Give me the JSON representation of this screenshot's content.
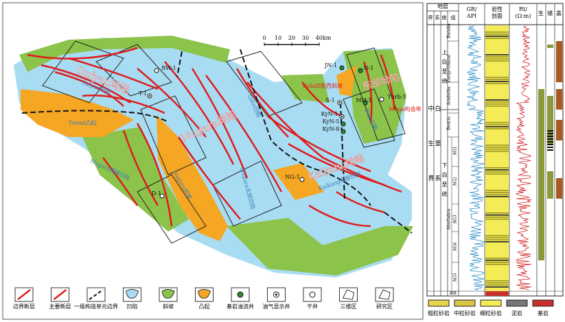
{
  "map": {
    "labels": [
      "Sufyan坳陷",
      "Sufyan凹陷",
      "Tomat凸起",
      "Nugara坳陷",
      "Gato凹陷",
      "Nugara西缘凹陷",
      "Nugara斜坡",
      "Nugara北部凹陷",
      "Kaikang坳陷",
      "Kaikang北部凹陷",
      "东部坳陷",
      "Fula凹陷西斜坡",
      "Fula凹陷",
      "Moga构造带"
    ],
    "wells": [
      "BW-1",
      "T-1",
      "JN-1",
      "N-1",
      "S-1",
      "MH-1",
      "Turb-1",
      "KyN-1",
      "KyN-5",
      "KyN-8",
      "NG-1",
      "D-1"
    ],
    "scale": [
      "0",
      "10",
      "20",
      "30",
      "40km"
    ]
  },
  "legend": [
    "边界断层",
    "主要断层",
    "一级构造单元边界",
    "凹陷",
    "斜坡",
    "凸起",
    "基岩油流井",
    "油气显示井",
    "干井",
    "三维区",
    "研究区"
  ],
  "column": {
    "headers": {
      "strata": "地层",
      "erathem": "界",
      "system": "系",
      "series": "统",
      "formation": "组",
      "gr": "GR/ API",
      "lith": "岩性 剖面",
      "rt": "Rt/ (Ω·m)",
      "source": "生",
      "reservoir": "储",
      "seal": "盖"
    },
    "erathem": "中生界",
    "system": "白垩系",
    "series": [
      "上白垩统",
      "下白垩统"
    ],
    "formations": [
      "Baraka",
      "Zarqa-Ghazal",
      "Aradeiba",
      "Bentiu",
      "AbuGabra"
    ],
    "members": [
      "AG1",
      "AG2",
      "AG3",
      "AG4",
      "AG5"
    ],
    "base": "基底",
    "lithology": [
      "粗粒砂岩",
      "中粒砂岩",
      "细粒砂岩",
      "泥岩",
      "基岩"
    ]
  }
}
